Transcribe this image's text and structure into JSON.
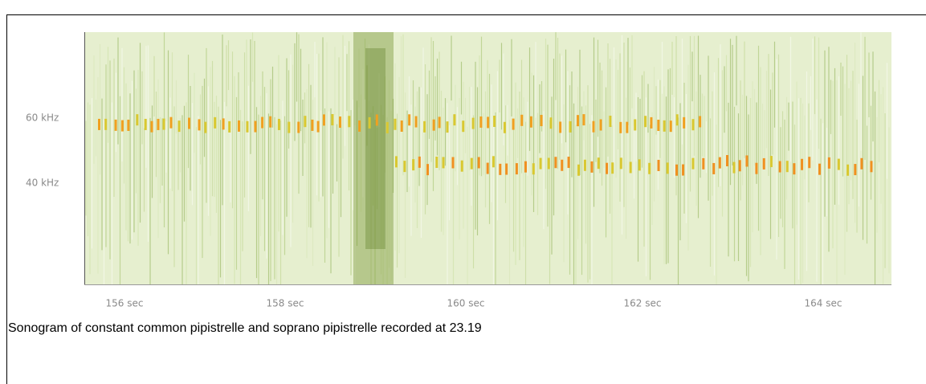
{
  "figure": {
    "y_labels": [
      "60 kHz",
      "40 kHz"
    ],
    "x_labels": [
      "156 sec",
      "158 sec",
      "160 sec",
      "162 sec",
      "164 sec"
    ]
  },
  "caption": "Sonogram of constant common pipistrelle and soprano pipistrelle recorded at 23.19"
}
